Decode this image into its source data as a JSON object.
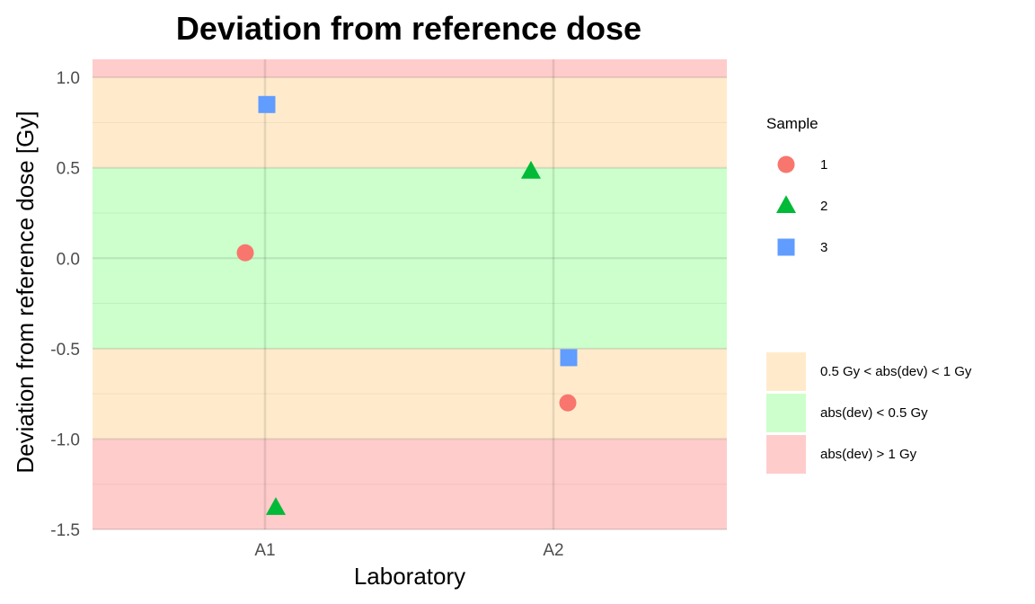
{
  "chart_data": {
    "type": "scatter",
    "title": "Deviation from reference dose",
    "xlabel": "Laboratory",
    "ylabel": "Deviation from reference dose [Gy]",
    "categories": [
      "A1",
      "A2"
    ],
    "ylim": [
      -1.5,
      1.1
    ],
    "yticks": [
      1.0,
      0.5,
      0.0,
      -0.5,
      -1.0,
      -1.5
    ],
    "ytick_labels": [
      "1.0",
      "0.5",
      "0.0",
      "-0.5",
      "-1.0",
      "-1.5"
    ],
    "grid": true,
    "bands": [
      {
        "label": "abs(dev) > 1 Gy",
        "from": 1.0,
        "to": 1.1,
        "color": "#ffcccc"
      },
      {
        "label": "0.5 Gy < abs(dev) < 1 Gy",
        "from": 0.5,
        "to": 1.0,
        "color": "#ffebcc"
      },
      {
        "label": "abs(dev) < 0.5 Gy",
        "from": -0.5,
        "to": 0.5,
        "color": "#ccffcc"
      },
      {
        "label": "0.5 Gy < abs(dev) < 1 Gy",
        "from": -1.0,
        "to": -0.5,
        "color": "#ffebcc"
      },
      {
        "label": "abs(dev) > 1 Gy",
        "from": -1.5,
        "to": -1.0,
        "color": "#ffcccc"
      }
    ],
    "legend_title": "Sample",
    "series": [
      {
        "name": "1",
        "shape": "circle",
        "color": "#f8766d",
        "points": [
          {
            "x": "A1",
            "y": 0.03
          },
          {
            "x": "A2",
            "y": -0.8
          }
        ]
      },
      {
        "name": "2",
        "shape": "triangle",
        "color": "#00ba38",
        "points": [
          {
            "x": "A1",
            "y": -1.38
          },
          {
            "x": "A2",
            "y": 0.48
          }
        ]
      },
      {
        "name": "3",
        "shape": "square",
        "color": "#619cff",
        "points": [
          {
            "x": "A1",
            "y": 0.85
          },
          {
            "x": "A2",
            "y": -0.55
          }
        ]
      }
    ],
    "band_legend": [
      {
        "label": "0.5 Gy < abs(dev) < 1 Gy",
        "color": "#ffebcc"
      },
      {
        "label": "abs(dev) < 0.5 Gy",
        "color": "#ccffcc"
      },
      {
        "label": "abs(dev) > 1 Gy",
        "color": "#ffcccc"
      }
    ],
    "legend_position": "right"
  }
}
